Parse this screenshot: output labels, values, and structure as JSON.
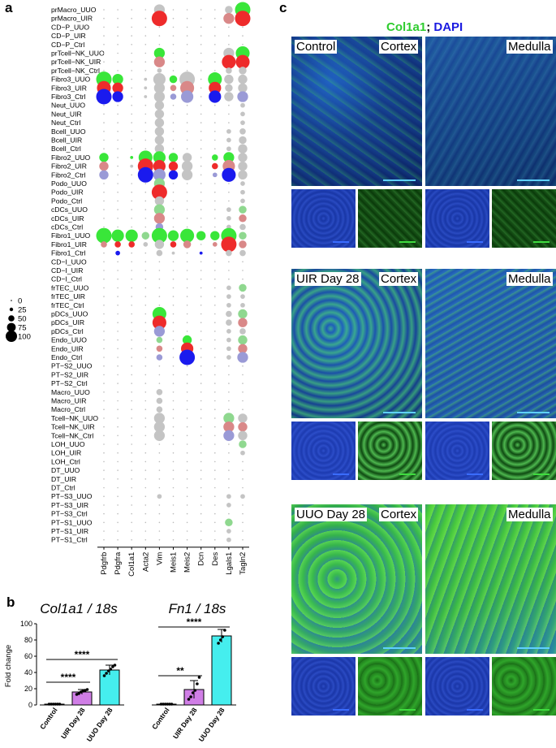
{
  "panels": {
    "a": "a",
    "b": "b",
    "c": "c"
  },
  "dotplot": {
    "rows": [
      "prMacro_UUO",
      "prMacro_UIR",
      "CD−P_UUO",
      "CD−P_UIR",
      "CD−P_Ctrl",
      "prTcell−NK_UUO",
      "prTcell−NK_UIR",
      "prTcell−NK_Ctrl",
      "Fibro3_UUO",
      "Fibro3_UIR",
      "Fibro3_Ctrl",
      "Neut_UUO",
      "Neut_UIR",
      "Neut_Ctrl",
      "Bcell_UUO",
      "Bcell_UIR",
      "Bcell_Ctrl",
      "Fibro2_UUO",
      "Fibro2_UIR",
      "Fibro2_Ctrl",
      "Podo_UUO",
      "Podo_UIR",
      "Podo_Ctrl",
      "cDCs_UUO",
      "cDCs_UIR",
      "cDCs_Ctrl",
      "Fibro1_UUO",
      "Fibro1_UIR",
      "Fibro1_Ctrl",
      "CD−I_UUO",
      "CD−I_UIR",
      "CD−I_Ctrl",
      "frTEC_UUO",
      "frTEC_UIR",
      "frTEC_Ctrl",
      "pDCs_UUO",
      "pDCs_UIR",
      "pDCs_Ctrl",
      "Endo_UUO",
      "Endo_UIR",
      "Endo_Ctrl",
      "PT−S2_UUO",
      "PT−S2_UIR",
      "PT−S2_Ctrl",
      "Macro_UUO",
      "Macro_UIR",
      "Macro_Ctrl",
      "Tcell−NK_UUO",
      "Tcell−NK_UIR",
      "Tcell−NK_Ctrl",
      "LOH_UUO",
      "LOH_UIR",
      "LOH_Ctrl",
      "DT_UUO",
      "DT_UIR",
      "DT_Ctrl",
      "PT−S3_UUO",
      "PT−S3_UIR",
      "PT−S3_Ctrl",
      "PT−S1_UUO",
      "PT−S1_UIR",
      "PT−S1_Ctrl"
    ],
    "genes": [
      "Pdgfrb",
      "Pdgfra",
      "Col1a1",
      "Acta2",
      "Vim",
      "Meis1",
      "Meis2",
      "Dcn",
      "Des",
      "Lgals1",
      "Tagln2"
    ],
    "size_legend": [
      "0",
      "25",
      "50",
      "75",
      "100"
    ],
    "colors": {
      "UUO": "#39e639",
      "UIR": "#ee2b2b",
      "Ctrl": "#1a1aee",
      "UUO_light": "#8fd88f",
      "UIR_light": "#d98888",
      "Ctrl_light": "#9a9ad6",
      "grey": "#c4c4c4"
    },
    "dots": [
      [
        0,
        4,
        0.7,
        "grey"
      ],
      [
        0,
        9,
        0.5,
        "grey"
      ],
      [
        0,
        10,
        1.0,
        "UUO"
      ],
      [
        1,
        4,
        1.0,
        "UIR"
      ],
      [
        1,
        9,
        0.7,
        "UIR_light"
      ],
      [
        1,
        10,
        1.0,
        "UIR"
      ],
      [
        5,
        4,
        0.7,
        "UUO"
      ],
      [
        5,
        9,
        0.7,
        "grey"
      ],
      [
        5,
        10,
        0.9,
        "UUO"
      ],
      [
        6,
        4,
        0.7,
        "UIR_light"
      ],
      [
        6,
        9,
        0.9,
        "UIR"
      ],
      [
        6,
        10,
        0.9,
        "UIR"
      ],
      [
        7,
        4,
        0.3,
        "grey"
      ],
      [
        7,
        9,
        0.4,
        "grey"
      ],
      [
        7,
        10,
        0.5,
        "grey"
      ],
      [
        8,
        0,
        1.0,
        "UUO"
      ],
      [
        8,
        1,
        0.7,
        "UUO"
      ],
      [
        8,
        3,
        0.2,
        "grey"
      ],
      [
        8,
        4,
        0.8,
        "grey"
      ],
      [
        8,
        5,
        0.5,
        "UUO"
      ],
      [
        8,
        6,
        1.0,
        "grey"
      ],
      [
        8,
        8,
        0.9,
        "UUO"
      ],
      [
        8,
        9,
        0.6,
        "grey"
      ],
      [
        8,
        10,
        0.6,
        "grey"
      ],
      [
        9,
        0,
        0.9,
        "UIR"
      ],
      [
        9,
        1,
        0.7,
        "UIR"
      ],
      [
        9,
        3,
        0.2,
        "grey"
      ],
      [
        9,
        4,
        0.7,
        "grey"
      ],
      [
        9,
        5,
        0.4,
        "UIR_light"
      ],
      [
        9,
        6,
        0.9,
        "UIR_light"
      ],
      [
        9,
        8,
        0.8,
        "UIR"
      ],
      [
        9,
        9,
        0.5,
        "grey"
      ],
      [
        9,
        10,
        0.6,
        "grey"
      ],
      [
        10,
        0,
        1.0,
        "Ctrl"
      ],
      [
        10,
        1,
        0.7,
        "Ctrl"
      ],
      [
        10,
        3,
        0.2,
        "grey"
      ],
      [
        10,
        4,
        0.7,
        "grey"
      ],
      [
        10,
        5,
        0.4,
        "Ctrl_light"
      ],
      [
        10,
        6,
        0.8,
        "Ctrl_light"
      ],
      [
        10,
        8,
        0.8,
        "Ctrl"
      ],
      [
        10,
        9,
        0.6,
        "grey"
      ],
      [
        10,
        10,
        0.7,
        "Ctrl_light"
      ],
      [
        11,
        4,
        0.6,
        "grey"
      ],
      [
        11,
        10,
        0.3,
        "grey"
      ],
      [
        12,
        4,
        0.6,
        "grey"
      ],
      [
        12,
        10,
        0.3,
        "grey"
      ],
      [
        13,
        4,
        0.6,
        "grey"
      ],
      [
        13,
        10,
        0.3,
        "grey"
      ],
      [
        14,
        4,
        0.6,
        "grey"
      ],
      [
        14,
        9,
        0.3,
        "grey"
      ],
      [
        14,
        10,
        0.4,
        "grey"
      ],
      [
        15,
        4,
        0.6,
        "grey"
      ],
      [
        15,
        9,
        0.3,
        "grey"
      ],
      [
        15,
        10,
        0.5,
        "grey"
      ],
      [
        16,
        4,
        0.6,
        "grey"
      ],
      [
        16,
        9,
        0.3,
        "grey"
      ],
      [
        16,
        10,
        0.6,
        "grey"
      ],
      [
        17,
        0,
        0.6,
        "UUO"
      ],
      [
        17,
        2,
        0.2,
        "UUO"
      ],
      [
        17,
        3,
        0.9,
        "UUO"
      ],
      [
        17,
        4,
        0.8,
        "UUO"
      ],
      [
        17,
        5,
        0.6,
        "UUO"
      ],
      [
        17,
        6,
        0.6,
        "grey"
      ],
      [
        17,
        8,
        0.4,
        "UUO"
      ],
      [
        17,
        9,
        0.7,
        "UUO"
      ],
      [
        17,
        10,
        0.6,
        "grey"
      ],
      [
        18,
        0,
        0.6,
        "UIR_light"
      ],
      [
        18,
        2,
        0.2,
        "grey"
      ],
      [
        18,
        3,
        1.0,
        "UIR"
      ],
      [
        18,
        4,
        0.8,
        "UIR"
      ],
      [
        18,
        5,
        0.6,
        "UIR"
      ],
      [
        18,
        6,
        0.7,
        "grey"
      ],
      [
        18,
        8,
        0.4,
        "UIR"
      ],
      [
        18,
        9,
        0.8,
        "UIR_light"
      ],
      [
        18,
        10,
        0.6,
        "grey"
      ],
      [
        19,
        0,
        0.6,
        "Ctrl_light"
      ],
      [
        19,
        3,
        1.0,
        "Ctrl"
      ],
      [
        19,
        4,
        0.8,
        "Ctrl_light"
      ],
      [
        19,
        5,
        0.6,
        "Ctrl"
      ],
      [
        19,
        6,
        0.7,
        "grey"
      ],
      [
        19,
        8,
        0.3,
        "Ctrl_light"
      ],
      [
        19,
        9,
        0.9,
        "Ctrl"
      ],
      [
        19,
        10,
        0.6,
        "grey"
      ],
      [
        20,
        4,
        0.7,
        "UUO_light"
      ],
      [
        20,
        10,
        0.3,
        "grey"
      ],
      [
        21,
        4,
        1.0,
        "UIR"
      ],
      [
        21,
        10,
        0.3,
        "grey"
      ],
      [
        22,
        4,
        0.6,
        "grey"
      ],
      [
        22,
        10,
        0.3,
        "grey"
      ],
      [
        23,
        4,
        0.7,
        "UUO_light"
      ],
      [
        23,
        9,
        0.3,
        "grey"
      ],
      [
        23,
        10,
        0.5,
        "UUO_light"
      ],
      [
        24,
        4,
        0.7,
        "UIR_light"
      ],
      [
        24,
        9,
        0.3,
        "grey"
      ],
      [
        24,
        10,
        0.5,
        "UIR_light"
      ],
      [
        25,
        4,
        0.5,
        "Ctrl_light"
      ],
      [
        25,
        9,
        0.3,
        "grey"
      ],
      [
        25,
        10,
        0.4,
        "grey"
      ],
      [
        26,
        0,
        1.0,
        "UUO"
      ],
      [
        26,
        1,
        0.8,
        "UUO"
      ],
      [
        26,
        2,
        0.8,
        "UUO"
      ],
      [
        26,
        3,
        0.5,
        "UUO_light"
      ],
      [
        26,
        4,
        1.0,
        "UUO"
      ],
      [
        26,
        5,
        0.7,
        "UUO"
      ],
      [
        26,
        6,
        0.9,
        "UUO"
      ],
      [
        26,
        7,
        0.6,
        "UUO"
      ],
      [
        26,
        8,
        0.6,
        "UUO"
      ],
      [
        26,
        9,
        1.0,
        "UUO"
      ],
      [
        26,
        10,
        0.5,
        "UUO_light"
      ],
      [
        27,
        0,
        0.4,
        "UIR_light"
      ],
      [
        27,
        1,
        0.4,
        "UIR"
      ],
      [
        27,
        2,
        0.4,
        "UIR"
      ],
      [
        27,
        3,
        0.3,
        "grey"
      ],
      [
        27,
        4,
        0.6,
        "grey"
      ],
      [
        27,
        5,
        0.4,
        "UIR"
      ],
      [
        27,
        6,
        0.5,
        "UIR_light"
      ],
      [
        27,
        8,
        0.3,
        "UIR_light"
      ],
      [
        27,
        9,
        1.0,
        "UIR"
      ],
      [
        27,
        10,
        0.5,
        "UIR_light"
      ],
      [
        28,
        1,
        0.3,
        "Ctrl"
      ],
      [
        28,
        4,
        0.4,
        "grey"
      ],
      [
        28,
        5,
        0.2,
        "grey"
      ],
      [
        28,
        7,
        0.2,
        "Ctrl"
      ],
      [
        28,
        9,
        0.4,
        "grey"
      ],
      [
        28,
        10,
        0.4,
        "grey"
      ],
      [
        32,
        9,
        0.3,
        "grey"
      ],
      [
        32,
        10,
        0.5,
        "UUO_light"
      ],
      [
        33,
        9,
        0.3,
        "grey"
      ],
      [
        33,
        10,
        0.3,
        "grey"
      ],
      [
        34,
        9,
        0.3,
        "grey"
      ],
      [
        34,
        10,
        0.3,
        "grey"
      ],
      [
        35,
        4,
        0.9,
        "UUO"
      ],
      [
        35,
        9,
        0.4,
        "grey"
      ],
      [
        35,
        10,
        0.6,
        "UUO_light"
      ],
      [
        36,
        4,
        0.9,
        "UIR"
      ],
      [
        36,
        9,
        0.4,
        "grey"
      ],
      [
        36,
        10,
        0.6,
        "UIR_light"
      ],
      [
        37,
        4,
        0.7,
        "Ctrl_light"
      ],
      [
        37,
        9,
        0.3,
        "grey"
      ],
      [
        37,
        10,
        0.4,
        "grey"
      ],
      [
        38,
        4,
        0.4,
        "UUO_light"
      ],
      [
        38,
        6,
        0.6,
        "UUO"
      ],
      [
        38,
        9,
        0.3,
        "grey"
      ],
      [
        38,
        10,
        0.6,
        "UUO_light"
      ],
      [
        39,
        4,
        0.4,
        "UIR_light"
      ],
      [
        39,
        6,
        0.8,
        "UIR"
      ],
      [
        39,
        9,
        0.3,
        "grey"
      ],
      [
        39,
        10,
        0.6,
        "UIR_light"
      ],
      [
        40,
        4,
        0.4,
        "Ctrl_light"
      ],
      [
        40,
        6,
        1.0,
        "Ctrl"
      ],
      [
        40,
        9,
        0.3,
        "grey"
      ],
      [
        40,
        10,
        0.7,
        "Ctrl_light"
      ],
      [
        44,
        4,
        0.4,
        "grey"
      ],
      [
        45,
        4,
        0.4,
        "grey"
      ],
      [
        46,
        4,
        0.4,
        "grey"
      ],
      [
        47,
        4,
        0.7,
        "grey"
      ],
      [
        47,
        9,
        0.7,
        "UUO_light"
      ],
      [
        47,
        10,
        0.6,
        "grey"
      ],
      [
        48,
        4,
        0.7,
        "grey"
      ],
      [
        48,
        9,
        0.7,
        "UIR_light"
      ],
      [
        48,
        10,
        0.6,
        "UIR_light"
      ],
      [
        49,
        4,
        0.7,
        "grey"
      ],
      [
        49,
        9,
        0.7,
        "Ctrl_light"
      ],
      [
        49,
        10,
        0.6,
        "grey"
      ],
      [
        50,
        10,
        0.5,
        "UUO_light"
      ],
      [
        51,
        10,
        0.3,
        "grey"
      ],
      [
        56,
        4,
        0.3,
        "grey"
      ],
      [
        56,
        9,
        0.3,
        "grey"
      ],
      [
        56,
        10,
        0.3,
        "grey"
      ],
      [
        57,
        9,
        0.3,
        "grey"
      ],
      [
        59,
        9,
        0.5,
        "UUO_light"
      ],
      [
        60,
        9,
        0.3,
        "grey"
      ],
      [
        61,
        9,
        0.3,
        "grey"
      ]
    ]
  },
  "bar_panel": {
    "ylabel": "Fold change",
    "ylim": [
      0,
      100
    ],
    "yticks": [
      "0",
      "20",
      "40",
      "60",
      "80",
      "100"
    ],
    "charts": [
      {
        "title": "Col1a1 / 18s",
        "categories": [
          "Control",
          "UIR Day 28",
          "UUO Day 28"
        ],
        "values": [
          1,
          16,
          43
        ],
        "errors": [
          0.5,
          3,
          6
        ],
        "colors": [
          "#ffffff",
          "#d07ee6",
          "#45eeee"
        ],
        "points": [
          [
            1,
            1,
            1,
            1,
            1,
            1
          ],
          [
            13,
            14,
            16,
            17,
            18,
            19
          ],
          [
            36,
            39,
            42,
            44,
            47,
            49
          ]
        ],
        "sig": [
          {
            "text": "****",
            "from": 0,
            "to": 1,
            "y": 28
          },
          {
            "text": "****",
            "from": 0,
            "to": 2,
            "y": 56
          }
        ]
      },
      {
        "title": "Fn1 / 18s",
        "categories": [
          "Control",
          "UIR Day 28",
          "UUO Day 28"
        ],
        "values": [
          1,
          19,
          85
        ],
        "errors": [
          0.5,
          11,
          8
        ],
        "colors": [
          "#ffffff",
          "#d07ee6",
          "#45eeee"
        ],
        "points": [
          [
            1,
            1,
            1,
            1,
            1,
            1
          ],
          [
            7,
            10,
            15,
            18,
            26,
            34
          ],
          [
            76,
            80,
            84,
            92
          ]
        ],
        "sig": [
          {
            "text": "**",
            "from": 0,
            "to": 1,
            "y": 36
          },
          {
            "text": "****",
            "from": 0,
            "to": 2,
            "y": 96
          }
        ]
      }
    ]
  },
  "micrographs": {
    "title_green": "Col1a1",
    "title_sep": ";",
    "title_blue": "DAPI",
    "region_cortex": "Cortex",
    "region_medulla": "Medulla",
    "rows": [
      {
        "label": "Control"
      },
      {
        "label": "UIR Day 28"
      },
      {
        "label": "UUO Day 28"
      }
    ]
  }
}
